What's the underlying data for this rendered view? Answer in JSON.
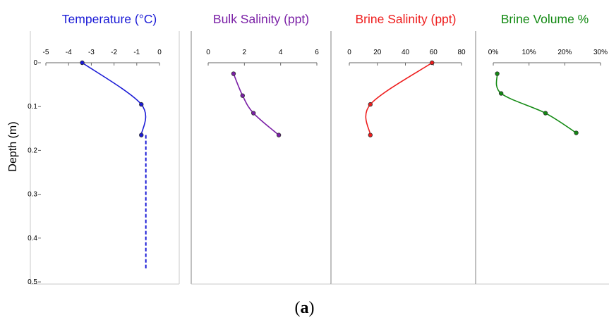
{
  "figure": {
    "caption_open": "(",
    "caption_letter": "a",
    "caption_close": ")"
  },
  "chart_data": [
    {
      "type": "line",
      "title": "Temperature (°C)",
      "color": "#1a1ad6",
      "ylabel": "Depth (m)",
      "xlim": [
        -5,
        0
      ],
      "x_ticks": [
        "-5",
        "-4",
        "-3",
        "-2",
        "-1",
        "0"
      ],
      "x_tick_values": [
        -5,
        -4,
        -3,
        -2,
        -1,
        0
      ],
      "ylim": [
        0,
        0.5
      ],
      "y_ticks": [
        "0",
        "0.1",
        "0.2",
        "0.3",
        "0.4",
        "0.5"
      ],
      "y_tick_values": [
        0,
        0.1,
        0.2,
        0.3,
        0.4,
        0.5
      ],
      "series": [
        {
          "x": [
            -3.4,
            -0.8,
            -0.8
          ],
          "y": [
            0.0,
            0.095,
            0.165
          ],
          "style": "solid"
        },
        {
          "x": [
            -0.6,
            -0.6
          ],
          "y": [
            0.165,
            0.47
          ],
          "style": "dashed"
        }
      ],
      "legend": "none"
    },
    {
      "type": "line",
      "title": "Bulk Salinity (ppt)",
      "color": "#7a1fa6",
      "xlim": [
        0,
        6
      ],
      "x_ticks": [
        "0",
        "2",
        "4",
        "6"
      ],
      "x_tick_values": [
        0,
        2,
        4,
        6
      ],
      "ylim": [
        0,
        0.5
      ],
      "series": [
        {
          "x": [
            1.4,
            1.9,
            2.5,
            3.9
          ],
          "y": [
            0.025,
            0.075,
            0.115,
            0.165
          ],
          "style": "solid"
        }
      ],
      "legend": "none"
    },
    {
      "type": "line",
      "title": "Brine Salinity (ppt)",
      "color": "#ee1c1c",
      "xlim": [
        0,
        80
      ],
      "x_ticks": [
        "0",
        "20",
        "40",
        "60",
        "80"
      ],
      "x_tick_values": [
        0,
        20,
        40,
        60,
        80
      ],
      "ylim": [
        0,
        0.5
      ],
      "series": [
        {
          "x": [
            59,
            15,
            15
          ],
          "y": [
            0.0,
            0.095,
            0.165
          ],
          "style": "solid"
        }
      ],
      "legend": "none"
    },
    {
      "type": "line",
      "title": "Brine Volume %",
      "color": "#138a13",
      "xlim": [
        0,
        30
      ],
      "x_ticks": [
        "0%",
        "10%",
        "20%",
        "30%"
      ],
      "x_tick_values": [
        0,
        10,
        20,
        30
      ],
      "ylim": [
        0,
        0.5
      ],
      "series": [
        {
          "x": [
            1.1,
            2.2,
            14.6,
            23.2
          ],
          "y": [
            0.025,
            0.07,
            0.115,
            0.16
          ],
          "style": "solid"
        }
      ],
      "legend": "none"
    }
  ]
}
